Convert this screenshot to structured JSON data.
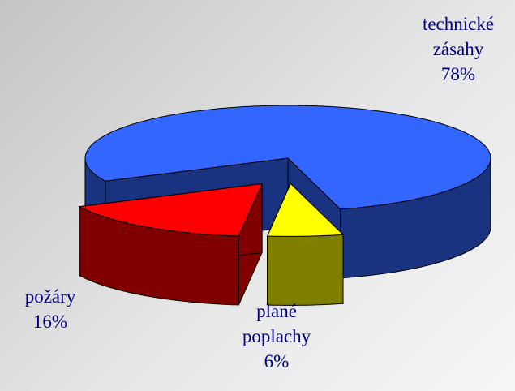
{
  "chart_data": {
    "type": "pie",
    "categories": [
      "technické zásahy",
      "požáry",
      "plané poplachy"
    ],
    "values": [
      78,
      16,
      6
    ],
    "value_labels": [
      "78%",
      "16%",
      "6%"
    ],
    "colors": [
      "#3366ff",
      "#ff0000",
      "#ffff00"
    ]
  }
}
